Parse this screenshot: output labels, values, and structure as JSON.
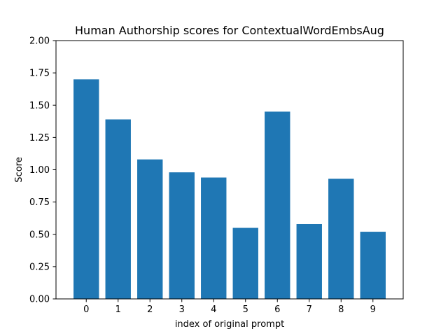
{
  "chart_data": {
    "type": "bar",
    "title": "Human Authorship scores for ContextualWordEmbsAug",
    "xlabel": "index of original prompt",
    "ylabel": "Score",
    "categories": [
      "0",
      "1",
      "2",
      "3",
      "4",
      "5",
      "6",
      "7",
      "8",
      "9"
    ],
    "values": [
      1.7,
      1.39,
      1.08,
      0.98,
      0.94,
      0.55,
      1.45,
      0.58,
      0.93,
      0.52
    ],
    "ylim": [
      0,
      2.0
    ],
    "yticks": [
      "0.00",
      "0.25",
      "0.50",
      "0.75",
      "1.00",
      "1.25",
      "1.50",
      "1.75",
      "2.00"
    ],
    "grid": false,
    "bar_color": "#1f77b4"
  }
}
